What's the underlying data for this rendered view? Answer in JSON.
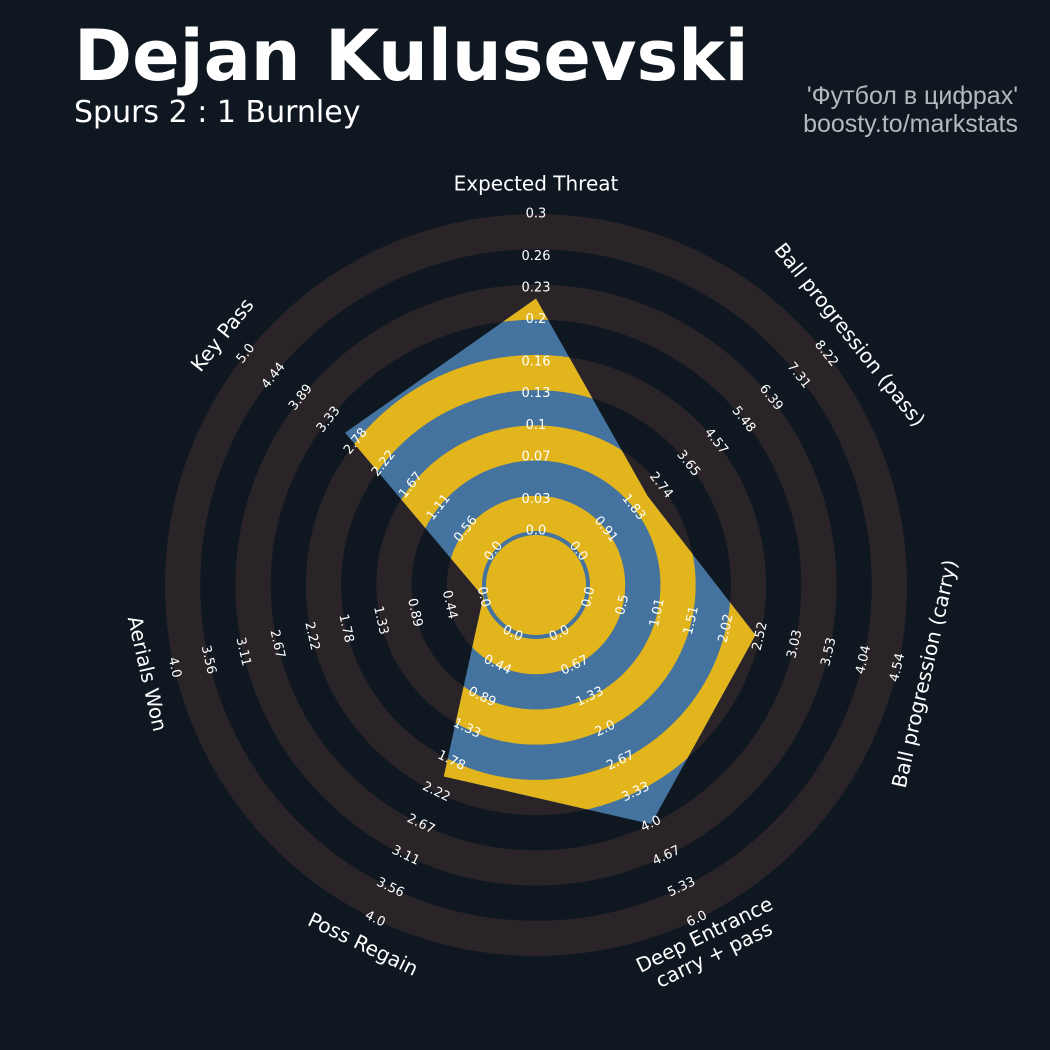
{
  "chart_data": {
    "type": "radar",
    "title": "Dejan Kulusevski",
    "subtitle": "Spurs 2 : 1 Burnley",
    "credits": [
      "'Футбол в цифрах'",
      "boosty.to/markstats"
    ],
    "categories": [
      "Expected Threat",
      "Ball progression (pass)",
      "Ball progression (carry)",
      "Deep Entrance\ncarry + pass",
      "Poss Regain",
      "Aerials Won",
      "Key Pass"
    ],
    "values": [
      0.22,
      2.3,
      2.45,
      4.0,
      2.0,
      0,
      3.0
    ],
    "color": "#43739e",
    "ring_color": "#e2b51c",
    "axes": [
      {
        "lim": [
          0,
          0.3
        ],
        "ticks": [
          {
            "value": 0,
            "label": "0.0"
          },
          0.03,
          0.07,
          0.1,
          0.13,
          0.16,
          0.2,
          0.23,
          0.26,
          0.3
        ]
      },
      {
        "lim": [
          0,
          8.22
        ],
        "ticks": [
          {
            "value": 0,
            "label": "0.0"
          },
          0.91,
          1.83,
          2.74,
          3.65,
          4.57,
          5.48,
          6.39,
          7.31,
          8.22
        ]
      },
      {
        "lim": [
          0,
          4.54
        ],
        "ticks": [
          {
            "value": 0,
            "label": "0.0"
          },
          0.5,
          1.01,
          1.51,
          2.02,
          2.52,
          3.03,
          3.53,
          4.04,
          4.54
        ]
      },
      {
        "lim": [
          0,
          6
        ],
        "ticks": [
          {
            "value": 0,
            "label": "0.0"
          },
          0.67,
          1.33,
          {
            "value": 2,
            "label": "2.0"
          },
          2.67,
          3.33,
          {
            "value": 4,
            "label": "4.0"
          },
          4.67,
          5.33,
          {
            "value": 6,
            "label": "6.0"
          }
        ]
      },
      {
        "lim": [
          0,
          4
        ],
        "ticks": [
          {
            "value": 0,
            "label": "0.0"
          },
          0.44,
          0.89,
          1.33,
          1.78,
          2.22,
          2.67,
          3.11,
          3.56,
          {
            "value": 4,
            "label": "4.0"
          }
        ]
      },
      {
        "lim": [
          0,
          4
        ],
        "ticks": [
          {
            "value": 0,
            "label": "0.0"
          },
          0.44,
          0.89,
          1.33,
          1.78,
          2.22,
          2.67,
          3.11,
          3.56,
          {
            "value": 4,
            "label": "4.0"
          }
        ]
      },
      {
        "lim": [
          0,
          5
        ],
        "ticks": [
          {
            "value": 0,
            "label": "0.0"
          },
          0.56,
          1.11,
          1.67,
          2.22,
          2.78,
          3.33,
          3.89,
          4.44,
          {
            "value": 5,
            "label": "5.0"
          }
        ]
      }
    ]
  }
}
